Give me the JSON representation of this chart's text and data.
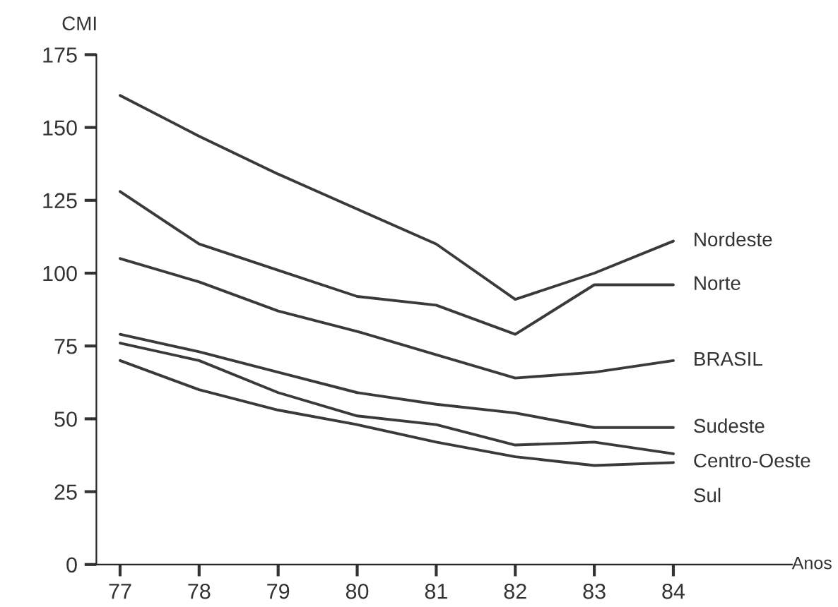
{
  "chart_data": {
    "type": "line",
    "ylabel": "CMI",
    "xlabel": "Anos",
    "x": [
      77,
      78,
      79,
      80,
      81,
      82,
      83,
      84
    ],
    "xlim": [
      76.7,
      85.5
    ],
    "xticks": [
      77,
      78,
      79,
      80,
      81,
      82,
      83,
      84
    ],
    "ylim": [
      0,
      175
    ],
    "yticks": [
      0,
      25,
      50,
      75,
      100,
      125,
      150,
      175
    ],
    "grid": false,
    "legend": false,
    "marker": "none",
    "line_style": "solid",
    "series": [
      {
        "name": "Nordeste",
        "color": "#3a3a3a",
        "values": [
          161,
          147,
          134,
          122,
          110,
          91,
          100,
          111
        ]
      },
      {
        "name": "Norte",
        "color": "#3a3a3a",
        "values": [
          128,
          110,
          101,
          92,
          89,
          79,
          96,
          96
        ]
      },
      {
        "name": "BRASIL",
        "color": "#3a3a3a",
        "values": [
          105,
          97,
          87,
          80,
          72,
          64,
          66,
          70
        ]
      },
      {
        "name": "Sudeste",
        "color": "#3a3a3a",
        "values": [
          79,
          73,
          66,
          59,
          55,
          52,
          47,
          47
        ]
      },
      {
        "name": "Centro-Oeste",
        "color": "#3a3a3a",
        "values": [
          76,
          70,
          59,
          51,
          48,
          41,
          42,
          38
        ]
      },
      {
        "name": "Sul",
        "color": "#3a3a3a",
        "values": [
          70,
          60,
          53,
          48,
          42,
          37,
          34,
          35
        ]
      }
    ]
  }
}
